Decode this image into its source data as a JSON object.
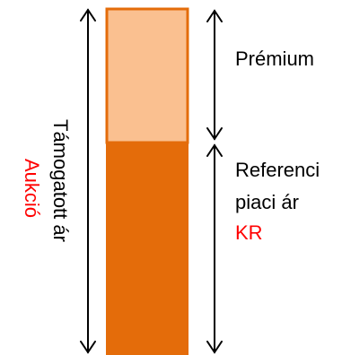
{
  "colors": {
    "bar_main": "#E46C0A",
    "bar_top": "#FAC090",
    "text": "#000000",
    "accent_text": "#FF0000",
    "arrow": "#000000"
  },
  "labels": {
    "premium": "Prémium",
    "reference_line1": "Referenci",
    "reference_line2": "piaci ár",
    "reference_code": "KR",
    "supported_price": "Támogatott ár",
    "auction": "Aukció"
  },
  "icons": {
    "left_arrow": "double-headed-vertical-arrow",
    "right_upper_arrow": "double-headed-vertical-arrow",
    "right_lower_arrow": "double-headed-vertical-arrow"
  }
}
